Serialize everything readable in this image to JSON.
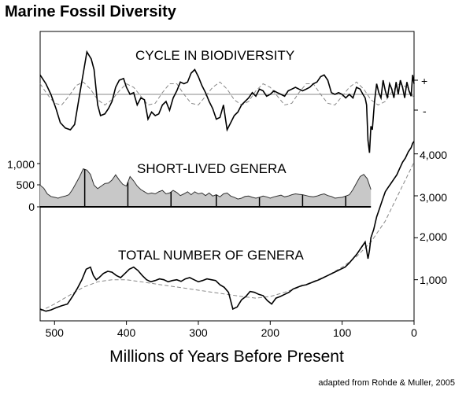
{
  "title": "Marine Fossil Diversity",
  "source": "adapted from Rohde & Muller, 2005",
  "chart_data": {
    "type": "line",
    "xlabel": "Millions of Years Before Present",
    "x_axis": {
      "ticks": [
        500,
        400,
        300,
        200,
        100,
        0
      ],
      "xlim": [
        520,
        0
      ],
      "reversed": true
    },
    "grid": false,
    "panels": [
      {
        "title": "CYCLE IN BIODIVERSITY",
        "y_axis": "right-signs",
        "y_tick_labels": [
          "+",
          "-"
        ],
        "series": [
          {
            "style": "solid-jagged",
            "x": [
              520,
              512,
              505,
              498,
              492,
              485,
              478,
              472,
              465,
              460,
              455,
              449,
              445,
              440,
              436,
              430,
              425,
              420,
              415,
              410,
              404,
              400,
              395,
              390,
              385,
              380,
              375,
              370,
              365,
              360,
              355,
              350,
              345,
              340,
              335,
              330,
              325,
              320,
              315,
              310,
              305,
              300,
              295,
              290,
              285,
              280,
              275,
              270,
              265,
              260,
              255,
              250,
              245,
              240,
              235,
              230,
              225,
              220,
              215,
              210,
              205,
              200,
              195,
              190,
              185,
              180,
              175,
              170,
              165,
              160,
              155,
              150,
              145,
              140,
              135,
              130,
              125,
              120,
              115,
              110,
              105,
              100,
              95,
              90,
              85,
              80,
              75,
              71,
              68,
              66,
              64,
              62,
              60,
              58,
              55,
              52,
              49,
              46,
              43,
              40,
              37,
              34,
              31,
              28,
              25,
              22,
              19,
              16,
              13,
              10,
              7,
              4,
              2,
              0
            ],
            "y": [
              0.55,
              0.3,
              0.0,
              -0.4,
              -0.8,
              -0.95,
              -1.0,
              -0.85,
              0.0,
              0.6,
              1.2,
              1.0,
              0.7,
              -0.3,
              -0.6,
              -0.55,
              -0.4,
              -0.2,
              0.2,
              0.4,
              0.45,
              0.2,
              0.0,
              0.05,
              -0.3,
              -0.1,
              -0.15,
              -0.7,
              -0.5,
              -0.6,
              -0.55,
              -0.3,
              -0.2,
              -0.45,
              -0.1,
              0.1,
              0.35,
              0.3,
              0.35,
              0.6,
              0.7,
              0.5,
              0.25,
              0.05,
              -0.2,
              -0.4,
              -0.7,
              -0.65,
              -0.3,
              -1.0,
              -0.8,
              -0.6,
              -0.5,
              -0.3,
              -0.2,
              -0.1,
              0.05,
              -0.05,
              0.15,
              0.1,
              -0.05,
              0.0,
              0.1,
              0.05,
              0.0,
              -0.05,
              0.1,
              0.15,
              0.2,
              0.15,
              0.1,
              0.15,
              0.2,
              0.3,
              0.35,
              0.5,
              0.55,
              0.4,
              0.05,
              0.0,
              0.05,
              0.0,
              -0.1,
              0.0,
              -0.1,
              0.2,
              0.15,
              0.0,
              -0.1,
              -0.3,
              -1.3,
              -1.65,
              -0.9,
              -1.0,
              -0.2,
              0.3,
              0.05,
              -0.1,
              0.4,
              0.1,
              -0.1,
              0.3,
              0.15,
              -0.1,
              0.35,
              0.0,
              0.4,
              0.2,
              -0.1,
              0.35,
              0.1,
              -0.05,
              0.55,
              0.3
            ]
          },
          {
            "style": "dashed",
            "description": "sinusoid, period 62 Myr",
            "x": [
              520,
              510,
              500,
              490,
              480,
              470,
              460,
              450,
              440,
              430,
              420,
              410,
              400,
              390,
              380,
              370,
              360,
              350,
              340,
              330,
              320,
              310,
              300,
              290,
              280,
              270,
              260,
              250,
              240,
              230,
              220,
              210,
              200,
              190,
              180,
              170,
              160,
              150,
              140,
              130,
              120,
              110,
              100,
              90,
              80,
              70,
              60,
              50,
              40,
              30,
              20,
              10,
              0
            ],
            "y": [
              0.3,
              0.0,
              -0.25,
              -0.3,
              -0.05,
              0.25,
              0.35,
              0.15,
              -0.15,
              -0.3,
              -0.15,
              0.1,
              0.3,
              0.2,
              -0.05,
              -0.3,
              -0.25,
              0.05,
              0.3,
              0.3,
              0.0,
              -0.25,
              -0.3,
              -0.05,
              0.2,
              0.35,
              0.15,
              -0.15,
              -0.3,
              -0.2,
              0.1,
              0.3,
              0.2,
              -0.05,
              -0.3,
              -0.25,
              0.05,
              0.3,
              0.3,
              0.0,
              -0.25,
              -0.3,
              -0.05,
              0.2,
              0.35,
              0.15,
              -0.15,
              -0.3,
              -0.2,
              0.1,
              0.3,
              0.2,
              -0.1
            ]
          }
        ]
      },
      {
        "title": "SHORT-LIVED GENERA",
        "type": "area",
        "y_axis": "left",
        "y_tick_labels": [
          "1,000",
          "500",
          "0"
        ],
        "ylim": [
          0,
          1000
        ],
        "series": [
          {
            "x": [
              520,
              515,
              510,
              505,
              500,
              495,
              490,
              485,
              480,
              475,
              470,
              465,
              460,
              455,
              450,
              445,
              440,
              435,
              430,
              425,
              420,
              415,
              410,
              405,
              400,
              395,
              390,
              385,
              380,
              375,
              370,
              365,
              360,
              355,
              350,
              345,
              340,
              335,
              330,
              325,
              320,
              315,
              310,
              305,
              300,
              295,
              290,
              285,
              280,
              275,
              270,
              265,
              260,
              255,
              250,
              245,
              240,
              235,
              230,
              225,
              220,
              215,
              210,
              205,
              200,
              195,
              190,
              185,
              180,
              175,
              170,
              165,
              160,
              155,
              150,
              145,
              140,
              135,
              130,
              125,
              120,
              115,
              110,
              105,
              100,
              95,
              90,
              85,
              80,
              75,
              70,
              65,
              60
            ],
            "y": [
              500,
              430,
              300,
              240,
              220,
              200,
              230,
              250,
              280,
              400,
              550,
              700,
              880,
              850,
              750,
              500,
              420,
              480,
              540,
              550,
              620,
              740,
              620,
              520,
              480,
              700,
              600,
              480,
              400,
              350,
              300,
              320,
              300,
              350,
              380,
              300,
              320,
              380,
              330,
              260,
              300,
              350,
              280,
              350,
              300,
              320,
              260,
              320,
              250,
              280,
              230,
              300,
              320,
              250,
              220,
              180,
              200,
              240,
              250,
              220,
              200,
              220,
              250,
              230,
              200,
              230,
              250,
              270,
              230,
              250,
              280,
              300,
              290,
              280,
              260,
              240,
              230,
              250,
              280,
              300,
              260,
              240,
              200,
              210,
              220,
              250,
              280,
              400,
              550,
              700,
              750,
              650,
              400
            ]
          }
        ],
        "vertical_markers_x": [
          458,
          398,
          338,
          275,
          215,
          155,
          95
        ]
      },
      {
        "title": "TOTAL NUMBER OF GENERA",
        "y_axis": "right",
        "y_tick_labels": [
          "4,000",
          "3,000",
          "2,000",
          "1,000"
        ],
        "ylim": [
          0,
          4000
        ],
        "series": [
          {
            "style": "solid",
            "x": [
              520,
              512,
              505,
              498,
              490,
              482,
              475,
              468,
              462,
              456,
              450,
              446,
              442,
              438,
              432,
              426,
              420,
              414,
              408,
              402,
              396,
              390,
              384,
              378,
              372,
              366,
              360,
              354,
              348,
              342,
              336,
              330,
              324,
              318,
              312,
              306,
              300,
              294,
              288,
              282,
              276,
              270,
              264,
              258,
              252,
              246,
              240,
              234,
              228,
              222,
              216,
              210,
              204,
              198,
              192,
              186,
              180,
              174,
              168,
              162,
              156,
              150,
              144,
              138,
              132,
              126,
              120,
              114,
              108,
              102,
              96,
              90,
              84,
              80,
              76,
              72,
              68,
              66,
              64,
              62,
              60,
              56,
              52,
              48,
              44,
              40,
              36,
              32,
              28,
              24,
              20,
              16,
              12,
              8,
              4,
              2,
              0
            ],
            "y": [
              300,
              250,
              280,
              330,
              380,
              420,
              600,
              800,
              1000,
              1250,
              1300,
              1100,
              1000,
              1050,
              1150,
              1200,
              1180,
              1100,
              1050,
              1150,
              1250,
              1300,
              1220,
              1100,
              1000,
              950,
              980,
              1020,
              1000,
              950,
              980,
              1000,
              960,
              1020,
              1050,
              1000,
              950,
              980,
              1020,
              1000,
              980,
              880,
              820,
              700,
              300,
              350,
              520,
              600,
              720,
              700,
              650,
              620,
              500,
              420,
              560,
              600,
              650,
              700,
              780,
              820,
              860,
              880,
              920,
              960,
              1000,
              1050,
              1100,
              1150,
              1200,
              1250,
              1300,
              1400,
              1520,
              1600,
              1700,
              1800,
              1900,
              1700,
              1500,
              1700,
              2000,
              2200,
              2500,
              2700,
              2900,
              3100,
              3200,
              3300,
              3400,
              3500,
              3650,
              3800,
              3900,
              4050,
              4150,
              4250,
              4300
            ]
          },
          {
            "style": "dashed",
            "description": "smooth trend",
            "x": [
              520,
              500,
              480,
              460,
              440,
              420,
              400,
              380,
              360,
              340,
              320,
              300,
              280,
              260,
              240,
              220,
              200,
              180,
              160,
              140,
              120,
              100,
              80,
              60,
              40,
              20,
              0
            ],
            "y": [
              250,
              420,
              620,
              820,
              950,
              1000,
              1000,
              950,
              900,
              850,
              800,
              750,
              700,
              650,
              600,
              560,
              600,
              700,
              820,
              960,
              1100,
              1300,
              1550,
              1900,
              2400,
              3100,
              3800
            ]
          }
        ]
      }
    ]
  }
}
